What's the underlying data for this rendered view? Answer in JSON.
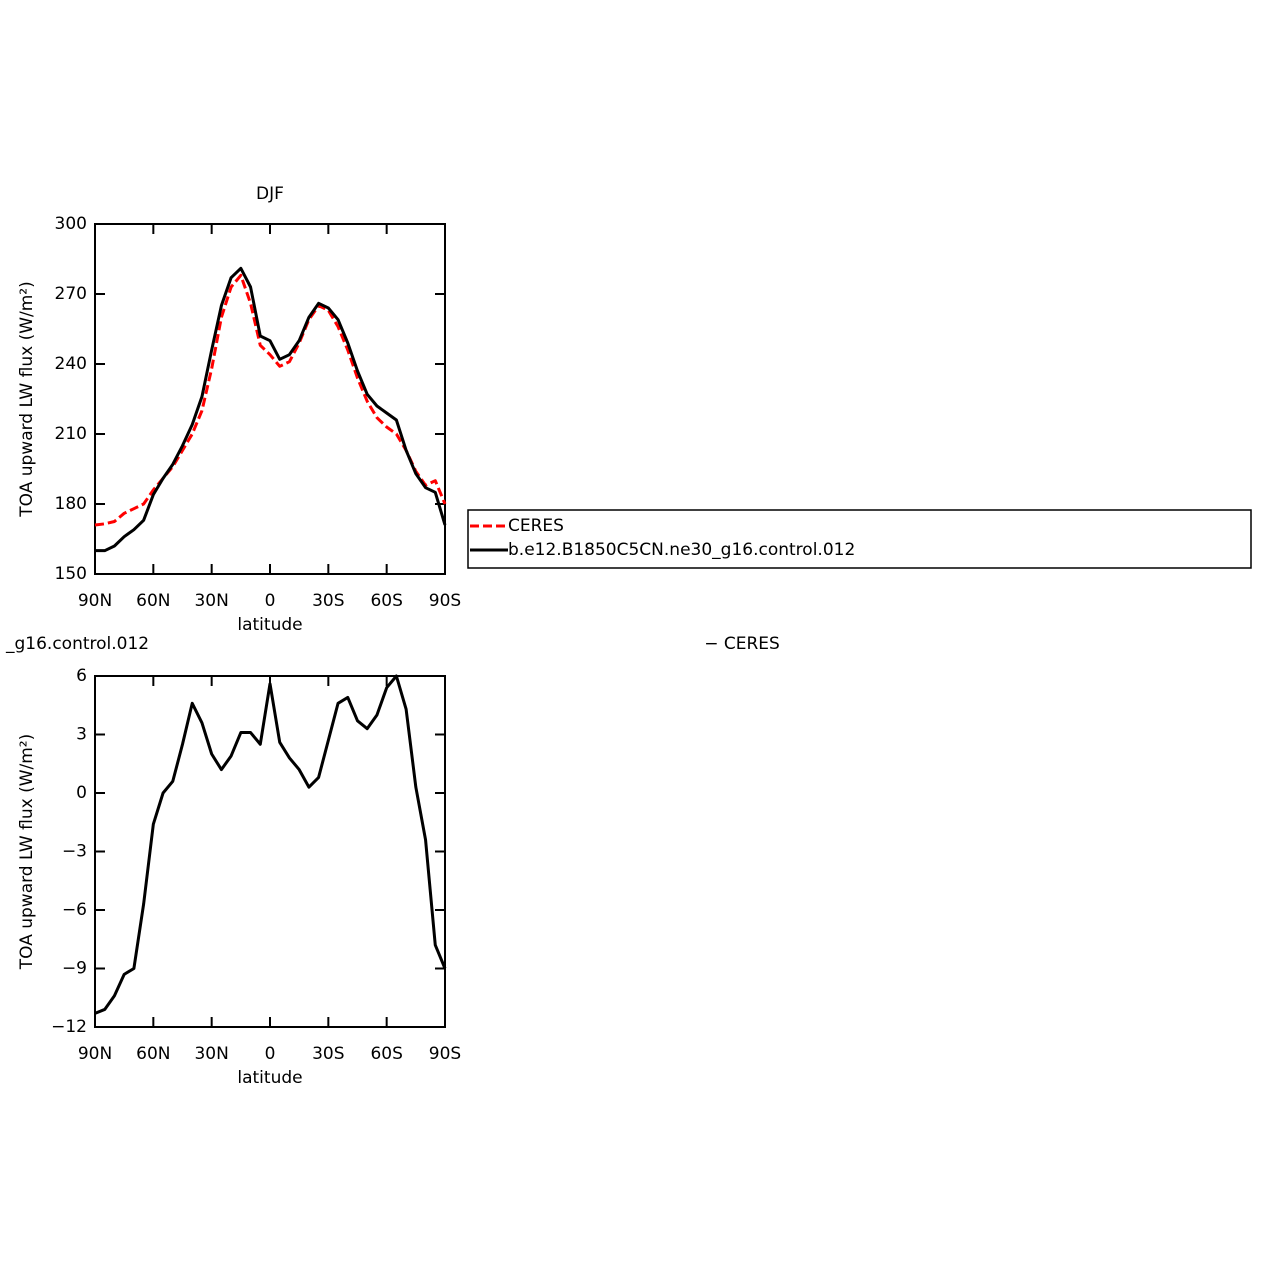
{
  "chart_data": [
    {
      "type": "line",
      "title": "DJF",
      "xlabel": "latitude",
      "ylabel": "TOA upward LW flux (W/m²)",
      "x": [
        90,
        85,
        80,
        75,
        70,
        65,
        60,
        55,
        50,
        45,
        40,
        35,
        30,
        25,
        20,
        15,
        10,
        5,
        0,
        -5,
        -10,
        -15,
        -20,
        -25,
        -30,
        -35,
        -40,
        -45,
        -50,
        -55,
        -60,
        -65,
        -70,
        -75,
        -80,
        -85,
        -90
      ],
      "series": [
        {
          "name": "CERES",
          "color": "#ff0000",
          "line_style": "dashed",
          "values": [
            171,
            171.5,
            172.5,
            176,
            178,
            180,
            186,
            191,
            196,
            203,
            210,
            220,
            238,
            260,
            273,
            278,
            266,
            248,
            244,
            239,
            241,
            249,
            259,
            265,
            263,
            256,
            246,
            234,
            224,
            217,
            213,
            210,
            203,
            194,
            188,
            190,
            180
          ]
        },
        {
          "name": "b.e12.B1850C5CN.ne30_g16.control.012",
          "color": "#000000",
          "line_style": "solid",
          "values": [
            160,
            160,
            162,
            166,
            169,
            173,
            184,
            191,
            197,
            205,
            214,
            226,
            246,
            265,
            277,
            281,
            273,
            252,
            250,
            242,
            244,
            250,
            260,
            266,
            264,
            259,
            249,
            237,
            227,
            222,
            219,
            216,
            203,
            193,
            187,
            185,
            171
          ]
        }
      ],
      "xlim": [
        90,
        -90
      ],
      "ylim": [
        150,
        300
      ],
      "xticks": [
        {
          "value": 90,
          "label": "90N"
        },
        {
          "value": 60,
          "label": "60N"
        },
        {
          "value": 30,
          "label": "30N"
        },
        0,
        {
          "value": -30,
          "label": "30S"
        },
        {
          "value": -60,
          "label": "60S"
        },
        {
          "value": -90,
          "label": "90S"
        }
      ],
      "yticks": [
        150,
        180,
        210,
        240,
        270,
        300
      ],
      "legend": "right"
    },
    {
      "type": "line",
      "left_title": "_g16.control.012",
      "right_title": "− CERES",
      "xlabel": "latitude",
      "ylabel": "TOA upward LW flux (W/m²)",
      "x": [
        90,
        85,
        80,
        75,
        70,
        65,
        60,
        55,
        50,
        45,
        40,
        35,
        30,
        25,
        20,
        15,
        10,
        5,
        0,
        -5,
        -10,
        -15,
        -20,
        -25,
        -30,
        -35,
        -40,
        -45,
        -50,
        -55,
        -60,
        -65,
        -70,
        -75,
        -80,
        -85,
        -90
      ],
      "color": "#000000",
      "values": [
        -11.3,
        -11.1,
        -10.4,
        -9.3,
        -9.0,
        -5.7,
        -1.6,
        0.0,
        0.6,
        2.5,
        4.6,
        3.6,
        2.0,
        1.2,
        1.9,
        3.1,
        3.1,
        2.5,
        5.6,
        2.6,
        1.8,
        1.2,
        0.3,
        0.8,
        2.7,
        4.6,
        4.9,
        3.7,
        3.3,
        4.0,
        5.4,
        6.0,
        4.3,
        0.3,
        -2.4,
        -7.8,
        -9.0
      ],
      "xlim": [
        90,
        -90
      ],
      "ylim": [
        -12,
        6
      ],
      "xticks": [
        {
          "value": 90,
          "label": "90N"
        },
        {
          "value": 60,
          "label": "60N"
        },
        {
          "value": 30,
          "label": "30N"
        },
        0,
        {
          "value": -30,
          "label": "30S"
        },
        {
          "value": -60,
          "label": "60S"
        },
        {
          "value": -90,
          "label": "90S"
        }
      ],
      "yticks": [
        {
          "value": -12,
          "label": "−12"
        },
        {
          "value": -9,
          "label": "−9"
        },
        {
          "value": -6,
          "label": "−6"
        },
        {
          "value": -3,
          "label": "−3"
        },
        0,
        3,
        6
      ]
    }
  ]
}
